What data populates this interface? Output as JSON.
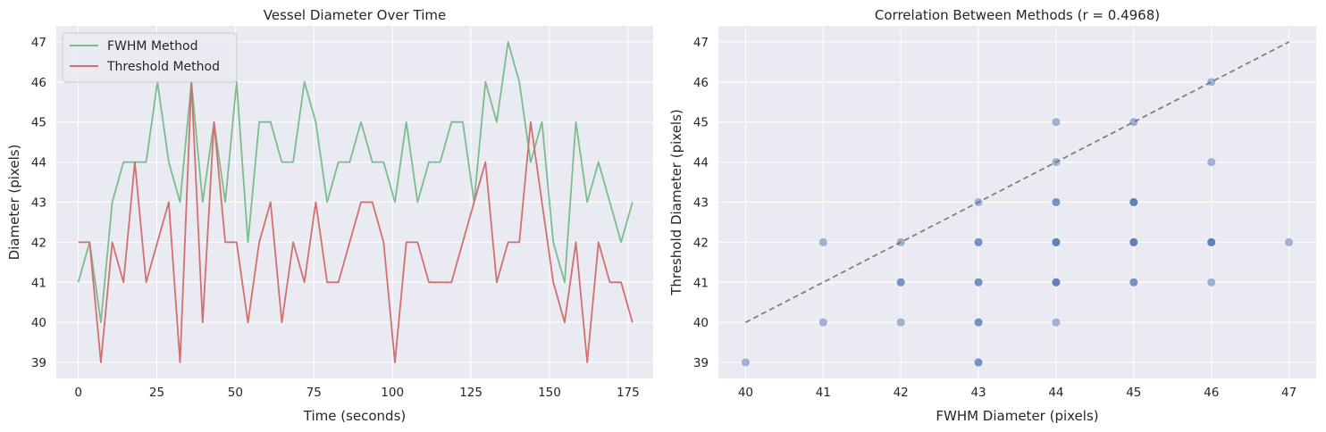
{
  "figure": {
    "background": "#ffffff",
    "plot_background": "#eaeaf2",
    "grid_color": "#ffffff"
  },
  "chart_data": [
    {
      "type": "line",
      "title": "Vessel Diameter Over Time",
      "xlabel": "Time (seconds)",
      "ylabel": "Diameter (pixels)",
      "xlim": [
        -7,
        183
      ],
      "ylim": [
        38.6,
        47.4
      ],
      "xticks": [
        0,
        25,
        50,
        75,
        100,
        125,
        150,
        175
      ],
      "yticks": [
        39,
        40,
        41,
        42,
        43,
        44,
        45,
        46,
        47
      ],
      "grid": true,
      "legend_position": "top-left",
      "x": [
        0,
        3.6,
        7.2,
        10.8,
        14.4,
        18,
        21.6,
        25.2,
        28.8,
        32.4,
        36,
        39.6,
        43.2,
        46.8,
        50.4,
        54,
        57.6,
        61.2,
        64.8,
        68.4,
        72,
        75.6,
        79.2,
        82.8,
        86.4,
        90,
        93.6,
        97.2,
        100.8,
        104.4,
        108,
        111.6,
        115.2,
        118.8,
        122.4,
        126,
        129.6,
        133.2,
        136.8,
        140.4,
        144,
        147.6,
        151.2,
        154.8,
        158.4,
        162,
        165.6,
        169.2,
        172.8,
        176.4
      ],
      "series": [
        {
          "name": "FWHM Method",
          "color": "#7bbd8e",
          "values": [
            41,
            42,
            40,
            43,
            44,
            44,
            44,
            46,
            44,
            43,
            46,
            43,
            45,
            43,
            46,
            42,
            45,
            45,
            44,
            44,
            46,
            45,
            43,
            44,
            44,
            45,
            44,
            44,
            43,
            45,
            43,
            44,
            44,
            45,
            45,
            43,
            46,
            45,
            47,
            46,
            44,
            45,
            42,
            41,
            45,
            43,
            44,
            43,
            42,
            43
          ]
        },
        {
          "name": "Threshold Method",
          "color": "#d0706f",
          "values": [
            42,
            42,
            39,
            42,
            41,
            44,
            41,
            42,
            43,
            39,
            46,
            40,
            45,
            42,
            42,
            40,
            42,
            43,
            40,
            42,
            41,
            43,
            41,
            41,
            42,
            43,
            43,
            42,
            39,
            42,
            42,
            41,
            41,
            41,
            42,
            43,
            44,
            41,
            42,
            42,
            45,
            43,
            41,
            40,
            42,
            39,
            42,
            41,
            41,
            40
          ]
        }
      ]
    },
    {
      "type": "scatter",
      "title": "Correlation Between Methods (r = 0.4968)",
      "xlabel": "FWHM Diameter (pixels)",
      "ylabel": "Threshold Diameter (pixels)",
      "xlim": [
        39.65,
        47.35
      ],
      "ylim": [
        38.6,
        47.4
      ],
      "xticks": [
        40,
        41,
        42,
        43,
        44,
        45,
        46,
        47
      ],
      "yticks": [
        39,
        40,
        41,
        42,
        43,
        44,
        45,
        46,
        47
      ],
      "grid": true,
      "point_color": "#4c72b0",
      "reference_line": {
        "from": [
          40,
          40
        ],
        "to": [
          47,
          47
        ],
        "color": "#808080",
        "style": "dashed"
      },
      "points": [
        [
          40,
          39
        ],
        [
          41,
          42
        ],
        [
          41,
          40
        ],
        [
          42,
          42
        ],
        [
          42,
          41
        ],
        [
          42,
          41
        ],
        [
          42,
          40
        ],
        [
          43,
          43
        ],
        [
          43,
          42
        ],
        [
          43,
          42
        ],
        [
          43,
          41
        ],
        [
          43,
          41
        ],
        [
          43,
          40
        ],
        [
          43,
          40
        ],
        [
          43,
          39
        ],
        [
          43,
          39
        ],
        [
          44,
          45
        ],
        [
          44,
          44
        ],
        [
          44,
          43
        ],
        [
          44,
          43
        ],
        [
          44,
          42
        ],
        [
          44,
          42
        ],
        [
          44,
          42
        ],
        [
          44,
          41
        ],
        [
          44,
          41
        ],
        [
          44,
          41
        ],
        [
          44,
          40
        ],
        [
          45,
          45
        ],
        [
          45,
          43
        ],
        [
          45,
          43
        ],
        [
          45,
          43
        ],
        [
          45,
          42
        ],
        [
          45,
          42
        ],
        [
          45,
          42
        ],
        [
          45,
          41
        ],
        [
          45,
          41
        ],
        [
          46,
          46
        ],
        [
          46,
          44
        ],
        [
          46,
          42
        ],
        [
          46,
          42
        ],
        [
          46,
          42
        ],
        [
          46,
          41
        ],
        [
          47,
          42
        ]
      ]
    }
  ]
}
